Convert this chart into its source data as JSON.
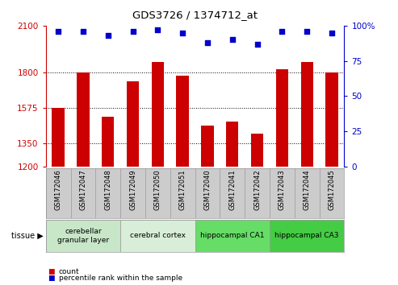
{
  "title": "GDS3726 / 1374712_at",
  "samples": [
    "GSM172046",
    "GSM172047",
    "GSM172048",
    "GSM172049",
    "GSM172050",
    "GSM172051",
    "GSM172040",
    "GSM172041",
    "GSM172042",
    "GSM172043",
    "GSM172044",
    "GSM172045"
  ],
  "counts": [
    1575,
    1800,
    1520,
    1745,
    1870,
    1780,
    1460,
    1490,
    1410,
    1820,
    1870,
    1800
  ],
  "percentiles": [
    96,
    96,
    93,
    96,
    97,
    95,
    88,
    90,
    87,
    96,
    96,
    95
  ],
  "ymin": 1200,
  "ymax": 2100,
  "yticks": [
    1200,
    1350,
    1575,
    1800,
    2100
  ],
  "ytick_labels": [
    "1200",
    "1350",
    "1575",
    "1800",
    "2100"
  ],
  "right_yticks": [
    0,
    25,
    50,
    75,
    100
  ],
  "right_ytick_labels": [
    "0",
    "25",
    "50",
    "75",
    "100%"
  ],
  "bar_color": "#cc0000",
  "dot_color": "#0000cc",
  "tissue_groups": [
    {
      "label": "cerebellar\ngranular layer",
      "start": 0,
      "end": 3,
      "color": "#c8e6c8"
    },
    {
      "label": "cerebral cortex",
      "start": 3,
      "end": 6,
      "color": "#d8eed8"
    },
    {
      "label": "hippocampal CA1",
      "start": 6,
      "end": 9,
      "color": "#66dd66"
    },
    {
      "label": "hippocampal CA3",
      "start": 9,
      "end": 12,
      "color": "#44cc44"
    }
  ],
  "legend_count_color": "#cc0000",
  "legend_pct_color": "#0000cc",
  "xlabel_count": "count",
  "xlabel_pct": "percentile rank within the sample",
  "bar_width": 0.5,
  "tick_area_bg": "#cccccc"
}
